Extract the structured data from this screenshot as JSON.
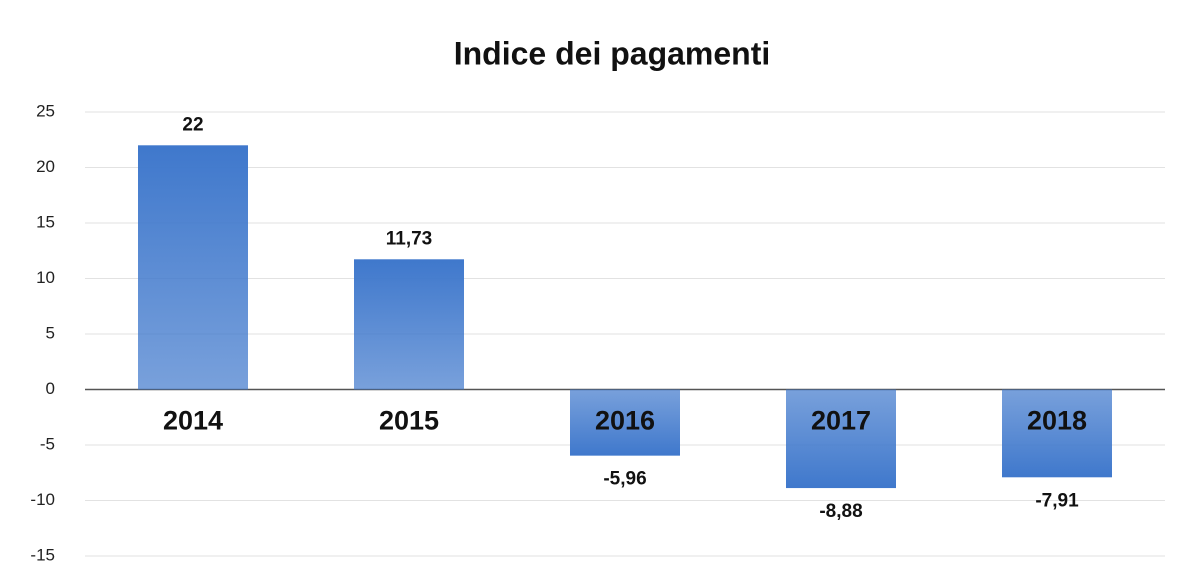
{
  "chart_data": {
    "type": "bar",
    "title": "Indice dei pagamenti",
    "categories": [
      "2014",
      "2015",
      "2016",
      "2017",
      "2018"
    ],
    "values": [
      22,
      11.73,
      -5.96,
      -8.88,
      -7.91
    ],
    "value_labels": [
      "22",
      "11,73",
      "-5,96",
      "-8,88",
      "-7,91"
    ],
    "color": "#3f78cc",
    "ylim": [
      -15,
      25
    ],
    "yticks": [
      -15,
      -10,
      -5,
      0,
      5,
      10,
      15,
      20,
      25
    ],
    "grid": true
  }
}
